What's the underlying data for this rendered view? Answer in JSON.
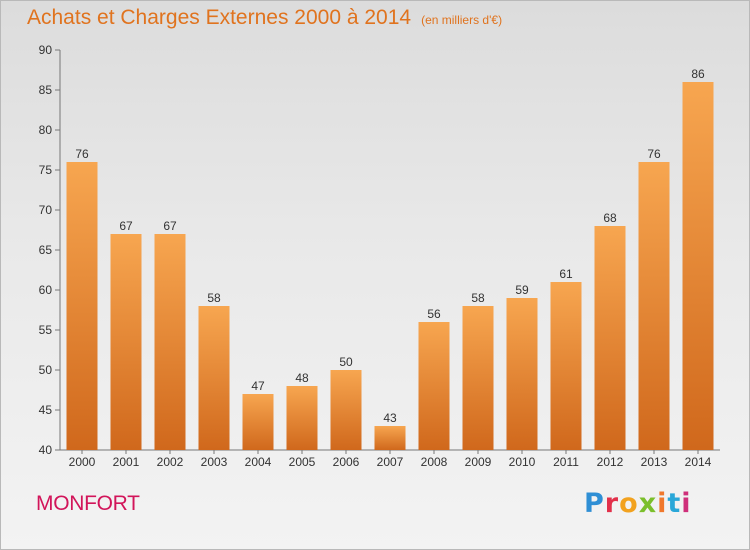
{
  "header": {
    "title": "Achats et Charges Externes 2000 à 2014",
    "unit": "(en milliers d'€)"
  },
  "town": "MONFORT",
  "logo": {
    "text": "Proxiti"
  },
  "colors": {
    "title": "#e0731e",
    "town": "#d2155a",
    "bar_top": "#f7a650",
    "bar_bottom": "#d0681c"
  },
  "chart_data": {
    "type": "bar",
    "categories": [
      "2000",
      "2001",
      "2002",
      "2003",
      "2004",
      "2005",
      "2006",
      "2007",
      "2008",
      "2009",
      "2010",
      "2011",
      "2012",
      "2013",
      "2014"
    ],
    "values": [
      76,
      67,
      67,
      58,
      47,
      48,
      50,
      43,
      56,
      58,
      59,
      61,
      68,
      76,
      86
    ],
    "ylim": [
      40,
      90
    ],
    "yticks": [
      40,
      45,
      50,
      55,
      60,
      65,
      70,
      75,
      80,
      85,
      90
    ],
    "grid": false,
    "data_labels": true
  }
}
